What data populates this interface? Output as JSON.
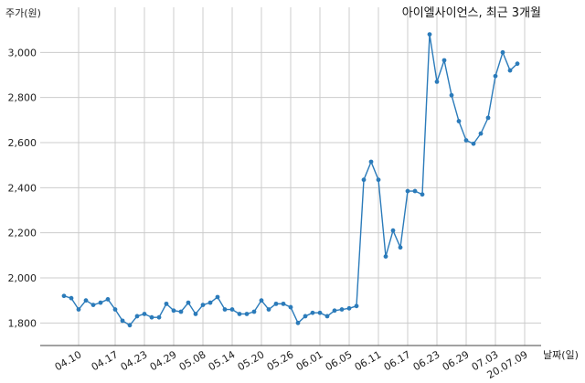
{
  "chart_data": {
    "type": "line",
    "title": "아이엘사이언스, 최근 3개월",
    "ylabel": "주가(원)",
    "xlabel": "날짜(일)",
    "ylim": [
      1700,
      3200
    ],
    "yticks": [
      1800,
      2000,
      2200,
      2400,
      2600,
      2800,
      3000
    ],
    "ytick_labels": [
      "1,800",
      "2,000",
      "2,200",
      "2,400",
      "2,600",
      "2,800",
      "3,000"
    ],
    "xtick_labels": [
      "04.10",
      "04.17",
      "04.23",
      "04.29",
      "05.08",
      "05.14",
      "05.20",
      "05.26",
      "06.01",
      "06.05",
      "06.11",
      "06.17",
      "06.23",
      "06.29",
      "07.03",
      "20.07.09"
    ],
    "xtick_index": [
      2,
      7,
      11,
      15,
      19,
      23,
      27,
      31,
      35,
      39,
      43,
      47,
      51,
      55,
      59,
      63
    ],
    "grid": true,
    "series_color": "#2b7bba",
    "values": [
      1920,
      1910,
      1860,
      1900,
      1880,
      1890,
      1905,
      1860,
      1810,
      1790,
      1830,
      1840,
      1825,
      1825,
      1885,
      1855,
      1850,
      1890,
      1840,
      1880,
      1890,
      1915,
      1860,
      1860,
      1840,
      1840,
      1850,
      1900,
      1860,
      1885,
      1885,
      1870,
      1800,
      1830,
      1845,
      1845,
      1830,
      1855,
      1860,
      1865,
      1875,
      2435,
      2515,
      2435,
      2095,
      2210,
      2135,
      2385,
      2385,
      2370,
      3080,
      2870,
      2965,
      2810,
      2695,
      2610,
      2595,
      2640,
      2710,
      2895,
      3000,
      2920,
      2950
    ]
  }
}
